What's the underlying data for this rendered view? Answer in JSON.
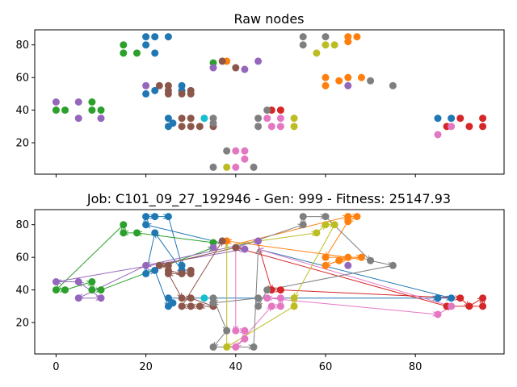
{
  "chart_data": [
    {
      "type": "scatter",
      "title": "Raw nodes",
      "xlim": [
        -4.75,
        99.75
      ],
      "ylim": [
        0.75,
        89.25
      ],
      "xticks": [],
      "yticks": [
        20,
        40,
        60,
        80
      ],
      "grid": false,
      "legend": "none",
      "series": [
        {
          "color": "#1f77b4",
          "points": [
            [
              20,
              85
            ],
            [
              22,
              85
            ],
            [
              25,
              85
            ],
            [
              20,
              80
            ],
            [
              22,
              75
            ],
            [
              28,
              55
            ],
            [
              28,
              52
            ],
            [
              20,
              50
            ],
            [
              22,
              52
            ],
            [
              25,
              35
            ],
            [
              25,
              30
            ],
            [
              26,
              32
            ],
            [
              85,
              35
            ],
            [
              88,
              35
            ]
          ]
        },
        {
          "color": "#ff7f0e",
          "points": [
            [
              65,
              85
            ],
            [
              67,
              85
            ],
            [
              65,
              82
            ],
            [
              38,
              70
            ],
            [
              60,
              60
            ],
            [
              65,
              60
            ],
            [
              68,
              60
            ],
            [
              60,
              55
            ],
            [
              63,
              58
            ]
          ]
        },
        {
          "color": "#2ca02c",
          "points": [
            [
              15,
              80
            ],
            [
              15,
              75
            ],
            [
              18,
              75
            ],
            [
              0,
              40
            ],
            [
              2,
              40
            ],
            [
              8,
              45
            ],
            [
              8,
              40
            ],
            [
              10,
              40
            ],
            [
              35,
              69
            ]
          ]
        },
        {
          "color": "#d62728",
          "points": [
            [
              48,
              40
            ],
            [
              50,
              40
            ],
            [
              87,
              30
            ],
            [
              90,
              35
            ],
            [
              92,
              30
            ],
            [
              95,
              35
            ],
            [
              95,
              30
            ]
          ]
        },
        {
          "color": "#9467bd",
          "points": [
            [
              20,
              55
            ],
            [
              0,
              45
            ],
            [
              5,
              45
            ],
            [
              5,
              35
            ],
            [
              10,
              35
            ],
            [
              35,
              66
            ],
            [
              45,
              70
            ],
            [
              42,
              65
            ],
            [
              65,
              55
            ]
          ]
        },
        {
          "color": "#8c564b",
          "points": [
            [
              23,
              55
            ],
            [
              25,
              55
            ],
            [
              25,
              52
            ],
            [
              25,
              50
            ],
            [
              28,
              50
            ],
            [
              30,
              52
            ],
            [
              30,
              50
            ],
            [
              28,
              35
            ],
            [
              28,
              30
            ],
            [
              30,
              35
            ],
            [
              30,
              30
            ],
            [
              32,
              30
            ],
            [
              35,
              30
            ],
            [
              40,
              66
            ],
            [
              37,
              70
            ]
          ]
        },
        {
          "color": "#e377c2",
          "points": [
            [
              40,
              15
            ],
            [
              42,
              15
            ],
            [
              42,
              10
            ],
            [
              40,
              5
            ],
            [
              47,
              35
            ],
            [
              48,
              30
            ],
            [
              50,
              35
            ],
            [
              50,
              30
            ],
            [
              85,
              25
            ],
            [
              88,
              30
            ]
          ]
        },
        {
          "color": "#7f7f7f",
          "points": [
            [
              55,
              85
            ],
            [
              60,
              85
            ],
            [
              55,
              80
            ],
            [
              70,
              58
            ],
            [
              75,
              55
            ],
            [
              47,
              40
            ],
            [
              45,
              35
            ],
            [
              45,
              30
            ],
            [
              35,
              35
            ],
            [
              35,
              32
            ],
            [
              38,
              15
            ],
            [
              35,
              5
            ],
            [
              44,
              5
            ]
          ]
        },
        {
          "color": "#bcbd22",
          "points": [
            [
              60,
              80
            ],
            [
              62,
              80
            ],
            [
              58,
              75
            ],
            [
              53,
              35
            ],
            [
              53,
              30
            ],
            [
              38,
              5
            ]
          ]
        },
        {
          "color": "#17becf",
          "points": [
            [
              33,
              35
            ]
          ]
        }
      ]
    },
    {
      "type": "scatter",
      "title": "Job: C101_09_27_192946 - Gen: 999 - Fitness: 25147.93",
      "xlim": [
        -4.75,
        99.75
      ],
      "ylim": [
        0.75,
        89.25
      ],
      "xticks": [
        0,
        20,
        40,
        60,
        80
      ],
      "yticks": [
        20,
        40,
        60,
        80
      ],
      "grid": false,
      "legend": "none",
      "routes": [
        {
          "color": "#1f77b4",
          "path": [
            [
              38,
              68
            ],
            [
              20,
              80
            ],
            [
              20,
              85
            ],
            [
              22,
              85
            ],
            [
              25,
              85
            ],
            [
              28,
              55
            ],
            [
              28,
              52
            ],
            [
              22,
              75
            ],
            [
              20,
              50
            ],
            [
              22,
              52
            ],
            [
              25,
              30
            ],
            [
              26,
              32
            ],
            [
              25,
              35
            ],
            [
              85,
              35
            ],
            [
              88,
              35
            ],
            [
              45,
              65
            ]
          ]
        },
        {
          "color": "#ff7f0e",
          "path": [
            [
              40,
              68
            ],
            [
              65,
              85
            ],
            [
              67,
              85
            ],
            [
              65,
              82
            ],
            [
              60,
              60
            ],
            [
              68,
              60
            ],
            [
              63,
              58
            ],
            [
              60,
              55
            ],
            [
              65,
              60
            ],
            [
              38,
              70
            ]
          ]
        },
        {
          "color": "#2ca02c",
          "path": [
            [
              35,
              69
            ],
            [
              18,
              75
            ],
            [
              15,
              75
            ],
            [
              15,
              80
            ],
            [
              0,
              40
            ],
            [
              2,
              40
            ],
            [
              8,
              45
            ],
            [
              8,
              40
            ],
            [
              10,
              40
            ],
            [
              35,
              66
            ]
          ]
        },
        {
          "color": "#d62728",
          "path": [
            [
              45,
              68
            ],
            [
              48,
              40
            ],
            [
              50,
              40
            ],
            [
              90,
              35
            ],
            [
              92,
              30
            ],
            [
              95,
              35
            ],
            [
              95,
              30
            ],
            [
              87,
              30
            ],
            [
              40,
              66
            ]
          ]
        },
        {
          "color": "#9467bd",
          "path": [
            [
              42,
              68
            ],
            [
              45,
              70
            ],
            [
              20,
              55
            ],
            [
              5,
              35
            ],
            [
              10,
              35
            ],
            [
              5,
              45
            ],
            [
              0,
              45
            ],
            [
              42,
              65
            ]
          ]
        },
        {
          "color": "#8c564b",
          "path": [
            [
              40,
              66
            ],
            [
              23,
              55
            ],
            [
              25,
              55
            ],
            [
              25,
              52
            ],
            [
              28,
              50
            ],
            [
              30,
              52
            ],
            [
              30,
              50
            ],
            [
              25,
              50
            ],
            [
              28,
              35
            ],
            [
              30,
              35
            ],
            [
              35,
              30
            ],
            [
              32,
              30
            ],
            [
              30,
              30
            ],
            [
              28,
              30
            ],
            [
              37,
              70
            ]
          ]
        },
        {
          "color": "#e377c2",
          "path": [
            [
              40,
              68
            ],
            [
              40,
              15
            ],
            [
              42,
              15
            ],
            [
              42,
              10
            ],
            [
              40,
              5
            ],
            [
              48,
              30
            ],
            [
              50,
              30
            ],
            [
              50,
              35
            ],
            [
              47,
              35
            ],
            [
              85,
              25
            ],
            [
              88,
              30
            ],
            [
              45,
              65
            ]
          ]
        },
        {
          "color": "#7f7f7f",
          "path": [
            [
              40,
              66
            ],
            [
              55,
              80
            ],
            [
              55,
              85
            ],
            [
              60,
              85
            ],
            [
              70,
              58
            ],
            [
              75,
              55
            ],
            [
              47,
              40
            ],
            [
              45,
              30
            ],
            [
              45,
              35
            ],
            [
              35,
              32
            ],
            [
              35,
              35
            ],
            [
              38,
              15
            ],
            [
              35,
              5
            ],
            [
              44,
              5
            ],
            [
              45,
              65
            ]
          ]
        },
        {
          "color": "#bcbd22",
          "path": [
            [
              40,
              68
            ],
            [
              58,
              75
            ],
            [
              60,
              80
            ],
            [
              62,
              80
            ],
            [
              53,
              35
            ],
            [
              53,
              30
            ],
            [
              38,
              5
            ],
            [
              38,
              68
            ]
          ]
        }
      ]
    }
  ]
}
